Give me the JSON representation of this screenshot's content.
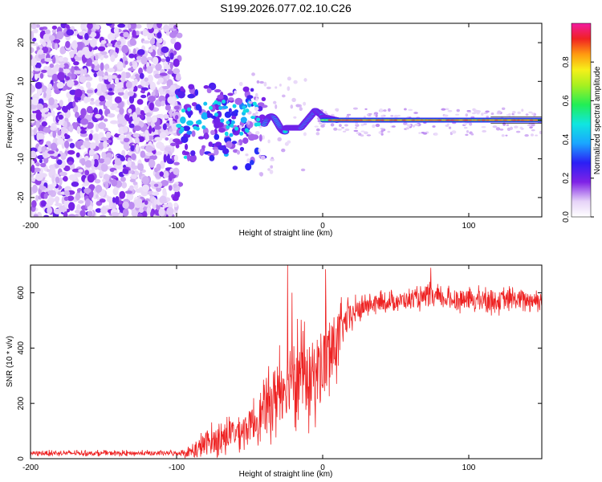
{
  "title": "S199.2026.077.02.10.C26",
  "chart_data": [
    {
      "type": "heatmap",
      "title": "S199.2026.077.02.10.C26",
      "xlabel": "Height of straight line (km)",
      "ylabel": "Frequency (Hz)",
      "xlim": [
        -200,
        150
      ],
      "ylim": [
        -25,
        25
      ],
      "xticks": [
        -200,
        -100,
        0,
        100
      ],
      "xtick_labels": [
        "-200",
        "-100",
        "0",
        "100"
      ],
      "yticks": [
        -20,
        -10,
        0,
        10,
        20
      ],
      "ytick_labels": [
        "-20",
        "-10",
        "0",
        "10",
        "20"
      ],
      "colorbar": {
        "label": "Normalized spectral amplitude",
        "range": [
          0,
          1
        ],
        "ticks": [
          0.0,
          0.2,
          0.4,
          0.6,
          0.8
        ],
        "tick_labels": [
          "0.0",
          "0.2",
          "0.4",
          "0.6",
          "0.8"
        ],
        "colormap": "rainbow (white-purple-blue-cyan-green-yellow-red-magenta)"
      },
      "regions": [
        {
          "x_range": [
            -200,
            -100
          ],
          "freq_range": [
            -25,
            25
          ],
          "amplitude": [
            0.0,
            0.2
          ],
          "description": "diffuse noise"
        },
        {
          "x_range": [
            -100,
            -40
          ],
          "freq_range": [
            -12,
            9
          ],
          "amplitude": [
            0.1,
            0.4
          ],
          "description": "scattered patches"
        },
        {
          "x_range": [
            -40,
            0
          ],
          "freq_range": [
            -5,
            5
          ],
          "amplitude": [
            0.3,
            0.6
          ],
          "description": "converging line"
        },
        {
          "x_range": [
            0,
            150
          ],
          "freq_range": [
            -1,
            1
          ],
          "amplitude": [
            0.4,
            1.0
          ],
          "description": "coherent line near 0 Hz"
        }
      ]
    },
    {
      "type": "line",
      "xlabel": "Height of straight line (km)",
      "ylabel": "SNR (10 * v/v)",
      "xlim": [
        -200,
        150
      ],
      "ylim": [
        0,
        700
      ],
      "xticks": [
        -200,
        -100,
        0,
        100
      ],
      "xtick_labels": [
        "-200",
        "-100",
        "0",
        "100"
      ],
      "yticks": [
        0,
        200,
        400,
        600
      ],
      "ytick_labels": [
        "0",
        "200",
        "400",
        "600"
      ],
      "color": "#ee2222",
      "series": [
        {
          "name": "SNR",
          "x": [
            -200,
            -180,
            -160,
            -140,
            -120,
            -100,
            -90,
            -85,
            -80,
            -70,
            -60,
            -50,
            -40,
            -30,
            -25,
            -20,
            -10,
            -5,
            0,
            5,
            10,
            15,
            20,
            25,
            30,
            40,
            50,
            60,
            70,
            75,
            80,
            90,
            100,
            110,
            120,
            130,
            140,
            150
          ],
          "mean": [
            20,
            20,
            20,
            20,
            20,
            20,
            25,
            35,
            55,
            75,
            95,
            120,
            170,
            250,
            280,
            330,
            280,
            310,
            340,
            380,
            430,
            490,
            520,
            540,
            555,
            565,
            570,
            575,
            580,
            585,
            580,
            575,
            575,
            575,
            570,
            575,
            575,
            575
          ],
          "spread": [
            12,
            12,
            12,
            12,
            12,
            12,
            30,
            60,
            70,
            75,
            80,
            90,
            120,
            200,
            200,
            230,
            200,
            210,
            230,
            200,
            160,
            90,
            70,
            60,
            50,
            45,
            45,
            45,
            50,
            60,
            50,
            50,
            55,
            55,
            55,
            55,
            50,
            50
          ],
          "spikes": [
            {
              "x": -24,
              "y": 700
            },
            {
              "x": -21,
              "y": 600
            },
            {
              "x": 2,
              "y": 685
            },
            {
              "x": 74,
              "y": 690
            }
          ]
        }
      ]
    }
  ]
}
